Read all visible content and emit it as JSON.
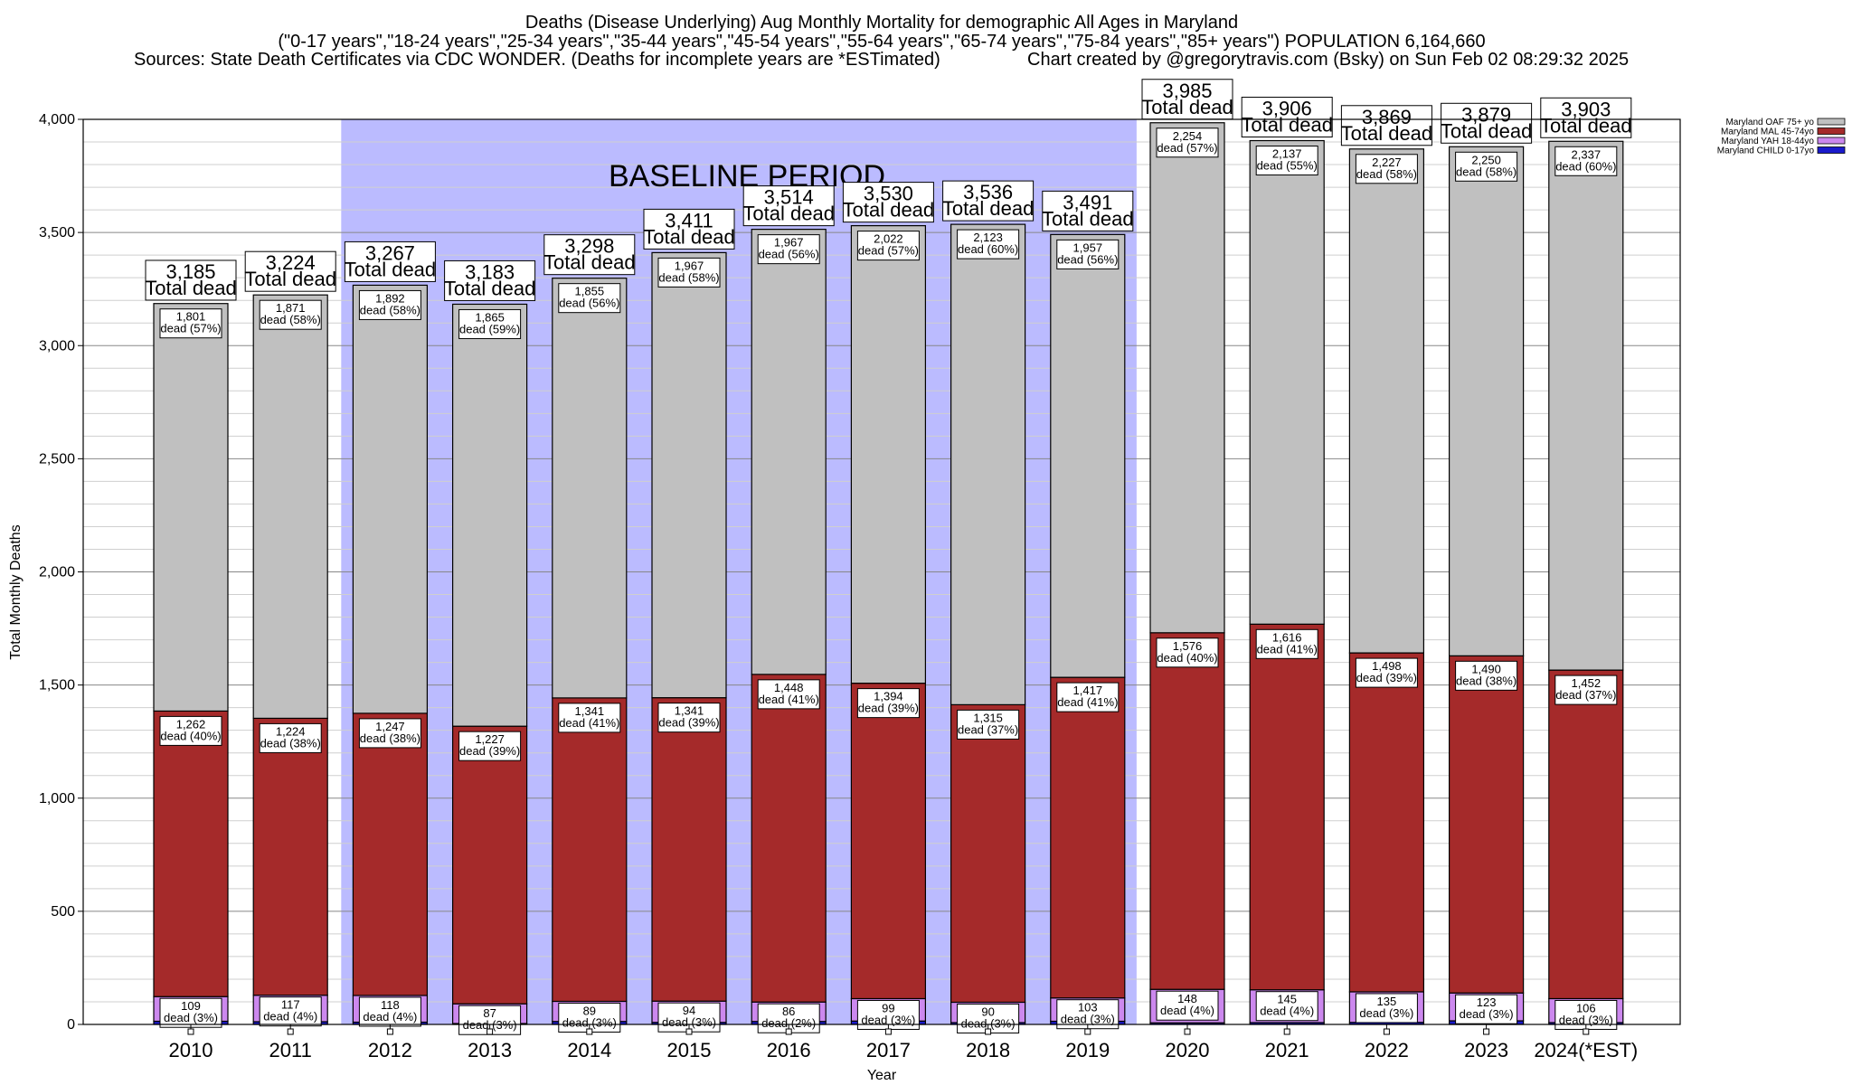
{
  "chart_data": {
    "type": "bar",
    "stacked": true,
    "title_lines": [
      "Deaths (Disease Underlying) Aug Monthly Mortality for demographic All Ages in Maryland",
      "(\"0-17 years\",\"18-24 years\",\"25-34 years\",\"35-44 years\",\"45-54 years\",\"55-64 years\",\"65-74 years\",\"75-84 years\",\"85+ years\") POPULATION 6,164,660"
    ],
    "subtitle_left": "Sources: State Death Certificates via CDC WONDER. (Deaths for incomplete years are *ESTimated)",
    "subtitle_right": "Chart created by @gregorytravis.com (Bsky) on Sun Feb 02 08:29:32 2025",
    "xlabel": "Year",
    "ylabel": "Total Monthly Deaths",
    "ylim": [
      0,
      4000
    ],
    "yticks": [
      0,
      500,
      1000,
      1500,
      2000,
      2500,
      3000,
      3500,
      4000
    ],
    "ytick_labels": [
      "0",
      "500",
      "1,000",
      "1,500",
      "2,000",
      "2,500",
      "3,000",
      "3,500",
      "4,000"
    ],
    "grid": true,
    "legend_position": "top-right",
    "categories": [
      "2010",
      "2011",
      "2012",
      "2013",
      "2014",
      "2015",
      "2016",
      "2017",
      "2018",
      "2019",
      "2020",
      "2021",
      "2022",
      "2023",
      "2024(*EST)"
    ],
    "series": [
      {
        "name": "Maryland CHILD 0-17yo",
        "color": "#1a1acc",
        "values": [
          14,
          12,
          10,
          4,
          13,
          9,
          13,
          15,
          8,
          14,
          7,
          8,
          9,
          16,
          8
        ],
        "labels": [
          "",
          "",
          "",
          "",
          "",
          "",
          "",
          "",
          "",
          "",
          "",
          "",
          "",
          "",
          ""
        ]
      },
      {
        "name": "Maryland YAH 18-44yo",
        "color": "#cc88ee",
        "values": [
          109,
          117,
          118,
          87,
          89,
          94,
          86,
          99,
          90,
          103,
          148,
          145,
          135,
          123,
          106
        ],
        "labels": [
          "109\ndead (3%)",
          "117\ndead (4%)",
          "118\ndead (4%)",
          "87\ndead (3%)",
          "89\ndead (3%)",
          "94\ndead (3%)",
          "86\ndead (2%)",
          "99\ndead (3%)",
          "90\ndead (3%)",
          "103\ndead (3%)",
          "148\ndead (4%)",
          "145\ndead (4%)",
          "135\ndead (3%)",
          "123\ndead (3%)",
          "106\ndead (3%)"
        ]
      },
      {
        "name": "Maryland MAL 45-74yo",
        "color": "#a52a2a",
        "values": [
          1262,
          1224,
          1247,
          1227,
          1341,
          1341,
          1448,
          1394,
          1315,
          1417,
          1576,
          1616,
          1498,
          1490,
          1452
        ],
        "labels": [
          "1,262\ndead (40%)",
          "1,224\ndead (38%)",
          "1,247\ndead (38%)",
          "1,227\ndead (39%)",
          "1,341\ndead (41%)",
          "1,341\ndead (39%)",
          "1,448\ndead (41%)",
          "1,394\ndead (39%)",
          "1,315\ndead (37%)",
          "1,417\ndead (41%)",
          "1,576\ndead (40%)",
          "1,616\ndead (41%)",
          "1,498\ndead (39%)",
          "1,490\ndead (38%)",
          "1,452\ndead (37%)"
        ]
      },
      {
        "name": "Maryland OAF 75+ yo",
        "color": "#c0c0c0",
        "values": [
          1801,
          1871,
          1892,
          1865,
          1855,
          1967,
          1967,
          2022,
          2123,
          1957,
          2254,
          2137,
          2227,
          2250,
          2337
        ],
        "labels": [
          "1,801\ndead (57%)",
          "1,871\ndead (58%)",
          "1,892\ndead (58%)",
          "1,865\ndead (59%)",
          "1,855\ndead (56%)",
          "1,967\ndead (58%)",
          "1,967\ndead (56%)",
          "2,022\ndead (57%)",
          "2,123\ndead (60%)",
          "1,957\ndead (56%)",
          "2,254\ndead (57%)",
          "2,137\ndead (55%)",
          "2,227\ndead (58%)",
          "2,250\ndead (58%)",
          "2,337\ndead (60%)"
        ]
      }
    ],
    "totals": [
      3185,
      3224,
      3267,
      3183,
      3298,
      3411,
      3514,
      3530,
      3536,
      3491,
      3985,
      3906,
      3869,
      3879,
      3903
    ],
    "total_labels": [
      "3,185",
      "3,224",
      "3,267",
      "3,183",
      "3,298",
      "3,411",
      "3,514",
      "3,530",
      "3,536",
      "3,491",
      "3,985",
      "3,906",
      "3,869",
      "3,879",
      "3,903"
    ],
    "total_suffix": "Total dead",
    "baseline": {
      "label": "BASELINE PERIOD",
      "from": "2012",
      "to": "2019",
      "color": "#bbbbff"
    },
    "legend_order": [
      "Maryland OAF 75+ yo",
      "Maryland MAL 45-74yo",
      "Maryland YAH 18-44yo",
      "Maryland CHILD 0-17yo"
    ]
  }
}
